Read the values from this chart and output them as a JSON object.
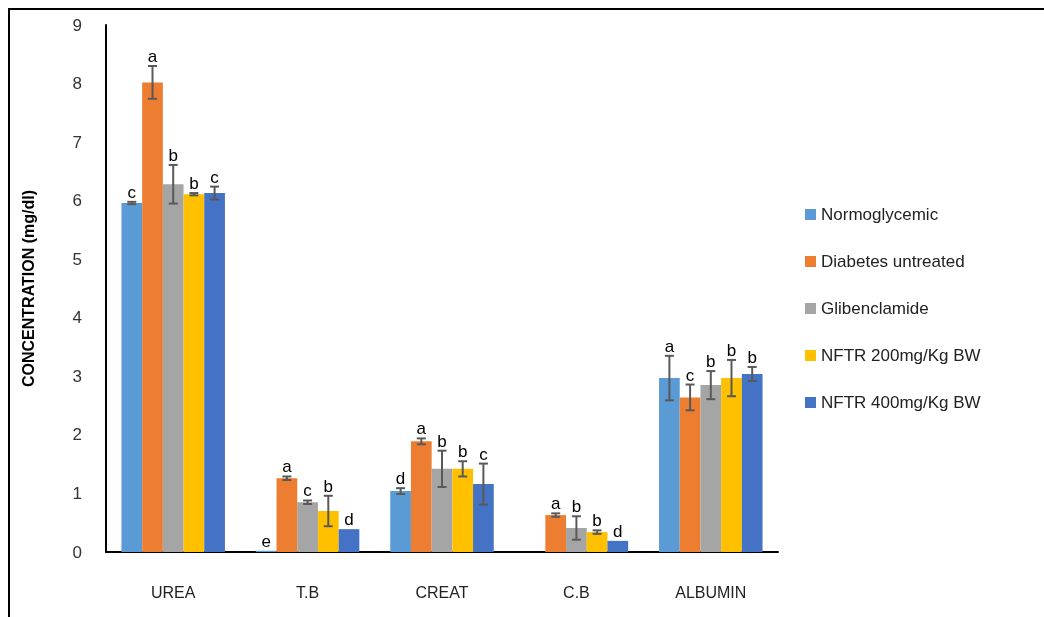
{
  "chart_data": {
    "type": "bar",
    "ylabel": "CONCENTRATION (mg/dl)",
    "categories": [
      "UREA",
      "T.B",
      "CREAT",
      "C.B",
      "ALBUMIN"
    ],
    "series": [
      {
        "name": "Normoglycemic",
        "color": "#5b9bd5",
        "values": [
          5.96,
          0.02,
          1.04,
          null,
          2.97
        ],
        "errors": [
          0.02,
          null,
          0.05,
          null,
          0.38
        ],
        "value_labels": [
          "c",
          "e",
          "d",
          null,
          "a"
        ]
      },
      {
        "name": "Diabetes untreated",
        "color": "#ed7d31",
        "values": [
          8.02,
          1.26,
          1.89,
          0.63,
          2.64
        ],
        "errors": [
          0.28,
          0.03,
          0.05,
          0.03,
          0.22
        ],
        "value_labels": [
          "a",
          "a",
          "a",
          "a",
          "c"
        ]
      },
      {
        "name": "Glibenclamide",
        "color": "#a5a5a5",
        "values": [
          6.28,
          0.85,
          1.42,
          0.41,
          2.85
        ],
        "errors": [
          0.33,
          0.03,
          0.31,
          0.2,
          0.24
        ],
        "value_labels": [
          "b",
          "c",
          "b",
          "b",
          "b"
        ]
      },
      {
        "name": "NFTR 200mg/Kg BW",
        "color": "#ffc000",
        "values": [
          6.11,
          0.7,
          1.42,
          0.34,
          2.97
        ],
        "errors": [
          0.02,
          0.26,
          0.13,
          0.03,
          0.31
        ],
        "value_labels": [
          "b",
          "b",
          "b",
          "b",
          "b"
        ]
      },
      {
        "name": "NFTR 400mg/Kg BW",
        "color": "#4472c4",
        "values": [
          6.13,
          0.39,
          1.16,
          0.19,
          3.04
        ],
        "errors": [
          0.11,
          null,
          0.35,
          null,
          0.12
        ],
        "value_labels": [
          "c",
          "d",
          "c",
          "d",
          "b"
        ]
      }
    ],
    "ylim": [
      0,
      9
    ],
    "yticks": [
      0,
      1,
      2,
      3,
      4,
      5,
      6,
      7,
      8,
      9
    ],
    "grid": false,
    "legend": "right"
  }
}
